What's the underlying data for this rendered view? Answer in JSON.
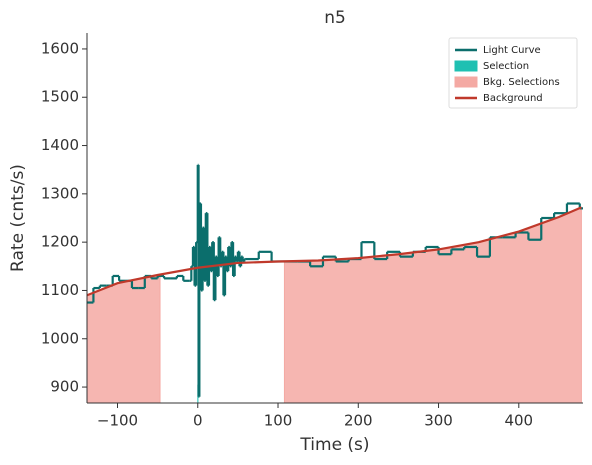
{
  "chart_data": {
    "type": "lightcurve",
    "title": "n5",
    "x_label": "Time (s)",
    "y_label": "Rate (cnts/s)",
    "xlim": [
      -138,
      480
    ],
    "ylim": [
      867,
      1633
    ],
    "xticks": [
      {
        "value": -100,
        "label": "−100"
      },
      0,
      100,
      200,
      300,
      400
    ],
    "yticks": [
      900,
      1000,
      1100,
      1200,
      1300,
      1400,
      1500,
      1600
    ],
    "legend_position": "upper right",
    "series": [
      {
        "name": "Light Curve",
        "color": "#0b6e6c",
        "x": [
          -138,
          -130,
          -122,
          -114,
          -106,
          -98,
          -90,
          -82,
          -74,
          -66,
          -58,
          -50,
          -42,
          -34,
          -26,
          -18,
          -10,
          -8,
          -6,
          -4,
          -2,
          0,
          1,
          2,
          4,
          6,
          8,
          10,
          12,
          14,
          16,
          18,
          20,
          22,
          24,
          26,
          28,
          30,
          32,
          34,
          36,
          38,
          40,
          42,
          44,
          46,
          48,
          50,
          52,
          54,
          56,
          58,
          60,
          76,
          92,
          108,
          124,
          140,
          156,
          172,
          188,
          204,
          220,
          236,
          252,
          268,
          284,
          300,
          316,
          332,
          348,
          364,
          380,
          396,
          412,
          428,
          444,
          460,
          476
        ],
        "values": [
          1075,
          1105,
          1110,
          1110,
          1130,
          1120,
          1120,
          1105,
          1105,
          1130,
          1125,
          1130,
          1125,
          1125,
          1130,
          1120,
          1120,
          1150,
          1190,
          1110,
          1200,
          1360,
          880,
          1280,
          1100,
          1230,
          1120,
          1260,
          1110,
          1190,
          1140,
          1200,
          1080,
          1170,
          1130,
          1210,
          1150,
          1180,
          1090,
          1170,
          1140,
          1190,
          1150,
          1200,
          1130,
          1170,
          1160,
          1180,
          1150,
          1170,
          1160,
          1165,
          1165,
          1180,
          1160,
          1160,
          1160,
          1150,
          1170,
          1160,
          1165,
          1200,
          1165,
          1180,
          1170,
          1180,
          1190,
          1175,
          1185,
          1190,
          1170,
          1210,
          1210,
          1220,
          1205,
          1250,
          1260,
          1280,
          1270
        ]
      },
      {
        "name": "Selection",
        "color": "#1fc0b2",
        "range": [
          -0.5,
          0.8
        ]
      },
      {
        "name": "Bkg. Selections",
        "color": "#f4a9a3",
        "ranges": [
          [
            -138,
            -47
          ],
          [
            108,
            478
          ]
        ]
      },
      {
        "name": "Background",
        "color": "#c0392b",
        "x": [
          -138,
          -100,
          -50,
          0,
          50,
          100,
          150,
          200,
          250,
          300,
          350,
          400,
          450,
          478
        ],
        "values": [
          1090,
          1115,
          1132,
          1147,
          1157,
          1160,
          1162,
          1167,
          1175,
          1185,
          1200,
          1222,
          1252,
          1272
        ]
      }
    ]
  }
}
